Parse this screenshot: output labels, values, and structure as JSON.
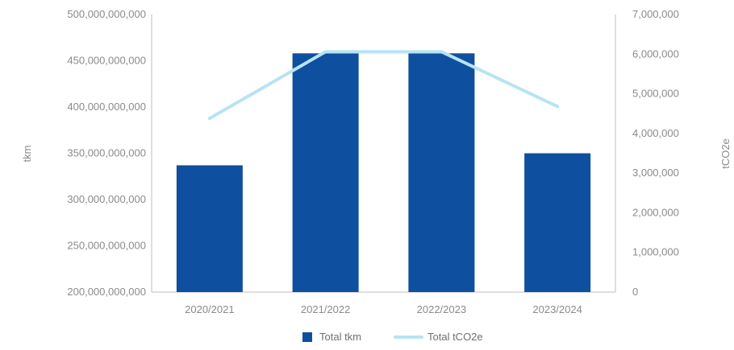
{
  "chart_data": {
    "type": "bar",
    "categories": [
      "2020/2021",
      "2021/2022",
      "2022/2023",
      "2023/2024"
    ],
    "series": [
      {
        "name": "Total tkm",
        "type": "bar",
        "axis": "left",
        "values": [
          337000000000,
          458000000000,
          458000000000,
          350000000000
        ],
        "color": "#0e4fa0"
      },
      {
        "name": "Total tCO2e",
        "type": "line",
        "axis": "right",
        "values": [
          4380000,
          6060000,
          6060000,
          4680000
        ],
        "color": "#b7e3f4"
      }
    ],
    "ylabel": "tkm",
    "y2label": "tCO2e",
    "ylim": [
      200000000000,
      500000000000
    ],
    "y2lim": [
      0,
      7000000
    ],
    "yticks": [
      "200,000,000,000",
      "250,000,000,000",
      "300,000,000,000",
      "350,000,000,000",
      "400,000,000,000",
      "450,000,000,000",
      "500,000,000,000"
    ],
    "y2ticks": [
      "0",
      "1,000,000",
      "2,000,000",
      "3,000,000",
      "4,000,000",
      "5,000,000",
      "6,000,000",
      "7,000,000"
    ],
    "legend": {
      "position": "bottom",
      "items": [
        {
          "label": "Total tkm",
          "marker": "square"
        },
        {
          "label": "Total tCO2e",
          "marker": "line"
        }
      ]
    },
    "grid": false
  }
}
